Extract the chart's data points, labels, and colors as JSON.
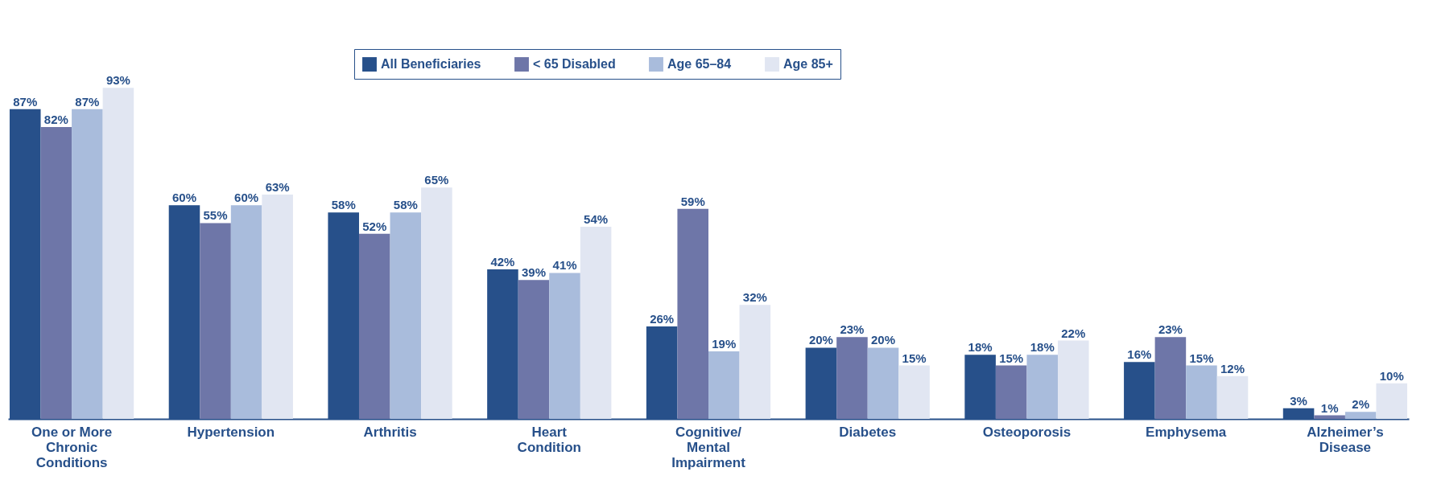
{
  "chart_data": {
    "type": "bar",
    "categories": [
      "One or More Chronic Conditions",
      "Hypertension",
      "Arthritis",
      "Heart Condition",
      "Cognitive/ Mental Impairment",
      "Diabetes",
      "Osteoporosis",
      "Emphysema",
      "Alzheimer’s Disease"
    ],
    "series": [
      {
        "name": "All Beneficiaries",
        "color": "#27508a",
        "values": [
          87,
          60,
          58,
          42,
          26,
          20,
          18,
          16,
          3
        ],
        "value_labels": [
          "87%",
          "60%",
          "58%",
          "42%",
          "26%",
          "20%",
          "18%",
          "16%",
          "3%"
        ]
      },
      {
        "name": "< 65 Disabled",
        "color": "#6e76a8",
        "values": [
          82,
          55,
          52,
          39,
          59,
          23,
          15,
          23,
          1
        ],
        "value_labels": [
          "82%",
          "55%",
          "52%",
          "39%",
          "59%",
          "23%",
          "15%",
          "23%",
          "1%"
        ]
      },
      {
        "name": "Age 65–84",
        "color": "#a9bcdc",
        "values": [
          87,
          60,
          58,
          41,
          19,
          20,
          18,
          15,
          2
        ],
        "value_labels": [
          "87%",
          "60%",
          "58%",
          "41%",
          "19%",
          "20%",
          "18%",
          "15%",
          "2%"
        ]
      },
      {
        "name": "Age 85+",
        "color": "#e1e6f2",
        "values": [
          93,
          63,
          65,
          54,
          32,
          15,
          22,
          12,
          10
        ],
        "value_labels": [
          "93%",
          "63%",
          "65%",
          "54%",
          "32%",
          "15%",
          "22%",
          "12%",
          "10%"
        ]
      }
    ],
    "legend": "top"
  }
}
